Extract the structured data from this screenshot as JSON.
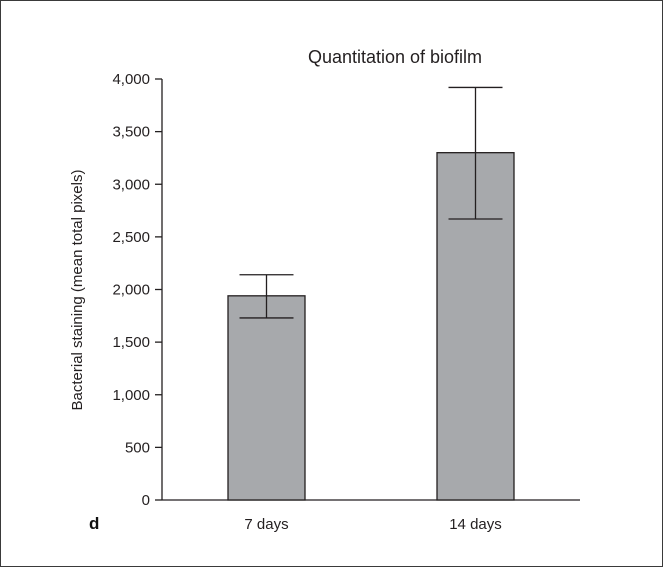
{
  "panel_label": "d",
  "chart_data": {
    "type": "bar",
    "title": "Quantitation of biofilm",
    "xlabel": "",
    "ylabel": "Bacterial staining (mean total pixels)",
    "categories": [
      "7 days",
      "14 days"
    ],
    "values": [
      1940,
      3300
    ],
    "error_upper": [
      2140,
      3920
    ],
    "error_lower": [
      1730,
      2670
    ],
    "ylim": [
      0,
      4000
    ],
    "yticks": [
      0,
      500,
      1000,
      1500,
      2000,
      2500,
      3000,
      3500,
      4000
    ],
    "ytick_labels": [
      "0",
      "500",
      "1,000",
      "1,500",
      "2,000",
      "2,500",
      "3,000",
      "3,500",
      "4,000"
    ],
    "grid": false,
    "bar_color": "#a7a9ac",
    "edge_color": "#231f20"
  }
}
